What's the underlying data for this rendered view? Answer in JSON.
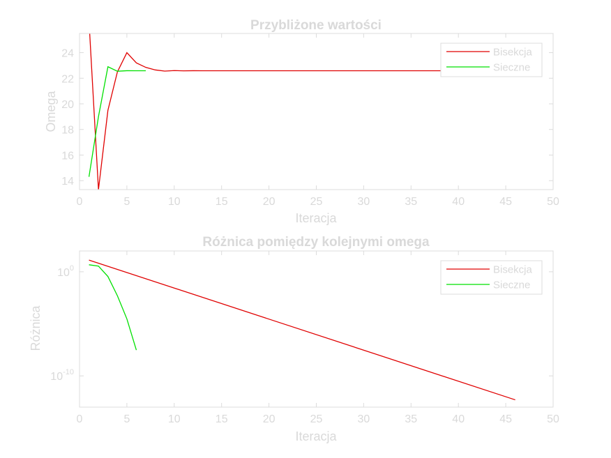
{
  "chart_data": [
    {
      "type": "line",
      "title": "Przybliżone wartości",
      "xlabel": "Iteracja",
      "ylabel": "Omega",
      "xlim": [
        0,
        50
      ],
      "ylim": [
        13.3,
        25.5
      ],
      "yscale": "linear",
      "xticks": [
        0,
        5,
        10,
        15,
        20,
        25,
        30,
        35,
        40,
        45,
        50
      ],
      "yticks": [
        14,
        16,
        18,
        20,
        22,
        24
      ],
      "ytick_labels": [
        "14",
        "16",
        "18",
        "20",
        "22",
        "24"
      ],
      "grid": false,
      "legend_position": "top-right",
      "series": [
        {
          "name": "Bisekcja",
          "color": "#e00000",
          "x": [
            1,
            2,
            3,
            4,
            5,
            6,
            7,
            8,
            9,
            10,
            11,
            12,
            13,
            14,
            15,
            16,
            17,
            18,
            19,
            20,
            21,
            22,
            23,
            24,
            25,
            26,
            27,
            28,
            29,
            30,
            31,
            32,
            33,
            34,
            35,
            36,
            37,
            38,
            39,
            40,
            41,
            42,
            43,
            44,
            45,
            46
          ],
          "y": [
            26.5,
            13.3,
            19.5,
            22.5,
            24.0,
            23.2,
            22.85,
            22.65,
            22.56,
            22.6,
            22.58,
            22.59,
            22.585,
            22.587,
            22.586,
            22.586,
            22.586,
            22.586,
            22.586,
            22.586,
            22.586,
            22.586,
            22.586,
            22.586,
            22.586,
            22.586,
            22.586,
            22.586,
            22.586,
            22.586,
            22.586,
            22.586,
            22.586,
            22.586,
            22.586,
            22.586,
            22.586,
            22.586,
            22.586,
            22.586,
            22.586,
            22.586,
            22.586,
            22.586,
            22.586,
            22.586
          ]
        },
        {
          "name": "Sieczne",
          "color": "#00e000",
          "x": [
            1,
            2,
            3,
            4,
            5,
            6,
            7
          ],
          "y": [
            14.3,
            19.0,
            22.9,
            22.55,
            22.59,
            22.586,
            22.586
          ]
        }
      ]
    },
    {
      "type": "line",
      "title": "Różnica pomiędzy kolejnymi omega",
      "xlabel": "Iteracja",
      "ylabel": "Różnica",
      "xlim": [
        0,
        50
      ],
      "ylim": [
        1e-13,
        100
      ],
      "yscale": "log",
      "xticks": [
        0,
        5,
        10,
        15,
        20,
        25,
        30,
        35,
        40,
        45,
        50
      ],
      "yticks": [
        1,
        1e-10
      ],
      "ytick_labels": [
        {
          "base": "10",
          "exp": "0"
        },
        {
          "base": "10",
          "exp": "-10"
        }
      ],
      "grid": false,
      "legend_position": "top-right",
      "series": [
        {
          "name": "Bisekcja",
          "color": "#e00000",
          "x": [
            1,
            46
          ],
          "y": [
            13.2,
            5e-13
          ]
        },
        {
          "name": "Sieczne",
          "color": "#00e000",
          "x": [
            1,
            2,
            3,
            4,
            5,
            6
          ],
          "y": [
            4.7,
            3.5,
            0.35,
            0.005,
            3e-05,
            3e-08
          ]
        }
      ]
    }
  ]
}
